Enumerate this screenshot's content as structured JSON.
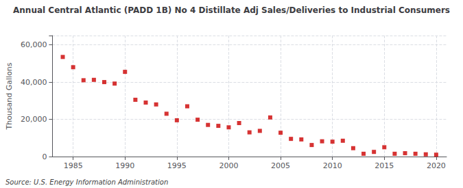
{
  "chart_data": {
    "type": "scatter",
    "title": "Annual Central Atlantic (PADD 1B) No 4 Distillate Adj Sales/Deliveries to Industrial Consumers",
    "ylabel": "Thousand Gallons",
    "annotation": "Source: U.S. Energy Information Administration",
    "x": [
      1984,
      1985,
      1986,
      1987,
      1988,
      1989,
      1990,
      1991,
      1992,
      1993,
      1994,
      1995,
      1996,
      1997,
      1998,
      1999,
      2000,
      2001,
      2002,
      2003,
      2004,
      2005,
      2006,
      2007,
      2008,
      2009,
      2010,
      2011,
      2012,
      2013,
      2014,
      2015,
      2016,
      2017,
      2018,
      2019,
      2020
    ],
    "values": [
      53500,
      48000,
      41000,
      41200,
      40000,
      39200,
      45500,
      30500,
      29000,
      28000,
      23000,
      19500,
      27000,
      19800,
      17000,
      16500,
      15700,
      18000,
      13000,
      13800,
      21000,
      12800,
      9500,
      9200,
      6200,
      8200,
      8000,
      8500,
      4500,
      1500,
      2500,
      5000,
      1500,
      1800,
      1500,
      1200,
      1000
    ],
    "color": "#cc0000",
    "marker": "square",
    "xlim": [
      1983,
      2021
    ],
    "xticks": [
      1985,
      1990,
      1995,
      2000,
      2005,
      2010,
      2015,
      2020
    ],
    "ylim": [
      0,
      65000
    ],
    "yticks": [
      0,
      {
        "value": 20000,
        "label": "20,000"
      },
      {
        "value": 40000,
        "label": "40,000"
      },
      {
        "value": 60000,
        "label": "60,000"
      }
    ],
    "grid": true
  }
}
